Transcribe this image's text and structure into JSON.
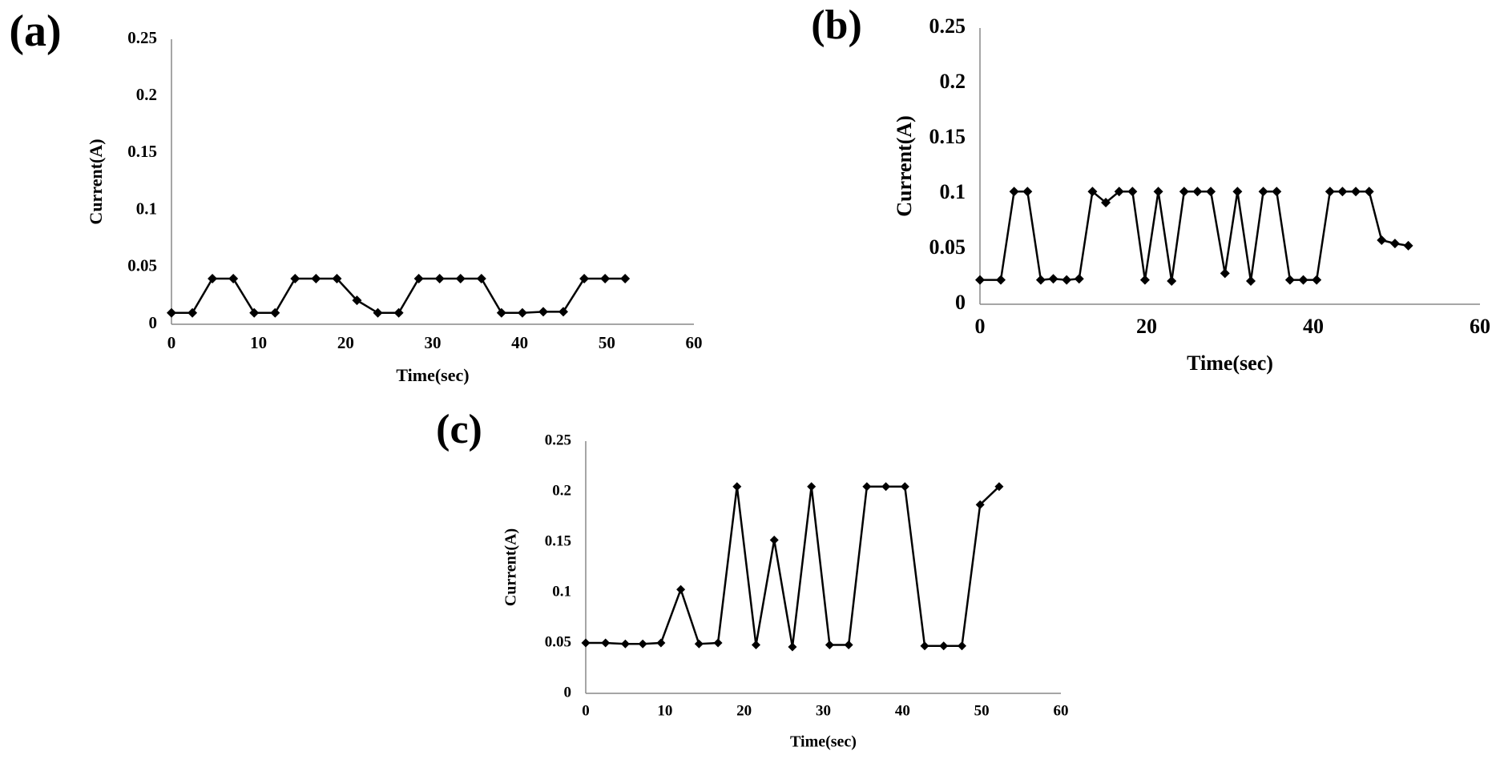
{
  "chart_data": [
    {
      "type": "line",
      "title": "(a)",
      "x_label": "Time(sec)",
      "y_label": "Current(A)",
      "x": [
        0,
        2.4,
        4.7,
        7.1,
        9.5,
        11.9,
        14.2,
        16.6,
        19,
        21.3,
        23.7,
        26.1,
        28.4,
        30.8,
        33.2,
        35.6,
        37.9,
        40.3,
        42.7,
        45,
        47.4,
        49.8,
        52.1
      ],
      "values": [
        0.01,
        0.01,
        0.04,
        0.04,
        0.01,
        0.01,
        0.04,
        0.04,
        0.04,
        0.021,
        0.01,
        0.01,
        0.04,
        0.04,
        0.04,
        0.04,
        0.01,
        0.01,
        0.011,
        0.011,
        0.04,
        0.04,
        0.04
      ],
      "color": "#000000",
      "marker": "diamond",
      "xlim": [
        0,
        60
      ],
      "xticks": [
        0,
        10,
        20,
        30,
        40,
        50,
        60
      ],
      "ylim": [
        0,
        0.25
      ],
      "yticks": [
        0,
        0.05,
        0.1,
        0.15,
        0.2,
        0.25
      ],
      "grid": false
    },
    {
      "type": "line",
      "title": "(b)",
      "x_label": "Time(sec)",
      "y_label": "Current(A)",
      "x": [
        0,
        2.5,
        4.1,
        5.7,
        7.3,
        8.8,
        10.4,
        11.9,
        13.5,
        15.1,
        16.7,
        18.3,
        19.8,
        21.4,
        23,
        24.5,
        26.1,
        27.7,
        29.4,
        30.9,
        32.5,
        34,
        35.6,
        37.2,
        38.8,
        40.4,
        42,
        43.5,
        45.1,
        46.7,
        48.2,
        49.8,
        51.4
      ],
      "values": [
        0.022,
        0.022,
        0.102,
        0.102,
        0.022,
        0.023,
        0.022,
        0.023,
        0.102,
        0.092,
        0.102,
        0.102,
        0.022,
        0.102,
        0.021,
        0.102,
        0.102,
        0.102,
        0.028,
        0.102,
        0.021,
        0.102,
        0.102,
        0.022,
        0.022,
        0.022,
        0.102,
        0.102,
        0.102,
        0.102,
        0.058,
        0.055,
        0.053
      ],
      "color": "#000000",
      "marker": "diamond",
      "xlim": [
        0,
        60
      ],
      "xticks": [
        0,
        20,
        40,
        60
      ],
      "ylim": [
        0,
        0.25
      ],
      "yticks": [
        0,
        0.05,
        0.1,
        0.15,
        0.2,
        0.25
      ],
      "grid": false
    },
    {
      "type": "line",
      "title": "(c)",
      "x_label": "Time(sec)",
      "y_label": "Current(A)",
      "x": [
        0,
        2.5,
        5,
        7.2,
        9.5,
        12,
        14.3,
        16.7,
        19.1,
        21.5,
        23.8,
        26.1,
        28.5,
        30.8,
        33.2,
        35.5,
        37.9,
        40.3,
        42.8,
        45.2,
        47.5,
        49.8,
        52.2
      ],
      "values": [
        0.05,
        0.05,
        0.049,
        0.049,
        0.05,
        0.103,
        0.049,
        0.05,
        0.205,
        0.048,
        0.152,
        0.046,
        0.205,
        0.048,
        0.048,
        0.205,
        0.205,
        0.205,
        0.047,
        0.047,
        0.047,
        0.187,
        0.205
      ],
      "color": "#000000",
      "marker": "diamond",
      "xlim": [
        0,
        60
      ],
      "xticks": [
        0,
        10,
        20,
        30,
        40,
        50,
        60
      ],
      "ylim": [
        0,
        0.25
      ],
      "yticks": [
        0,
        0.05,
        0.1,
        0.15,
        0.2,
        0.25
      ],
      "grid": false
    }
  ]
}
